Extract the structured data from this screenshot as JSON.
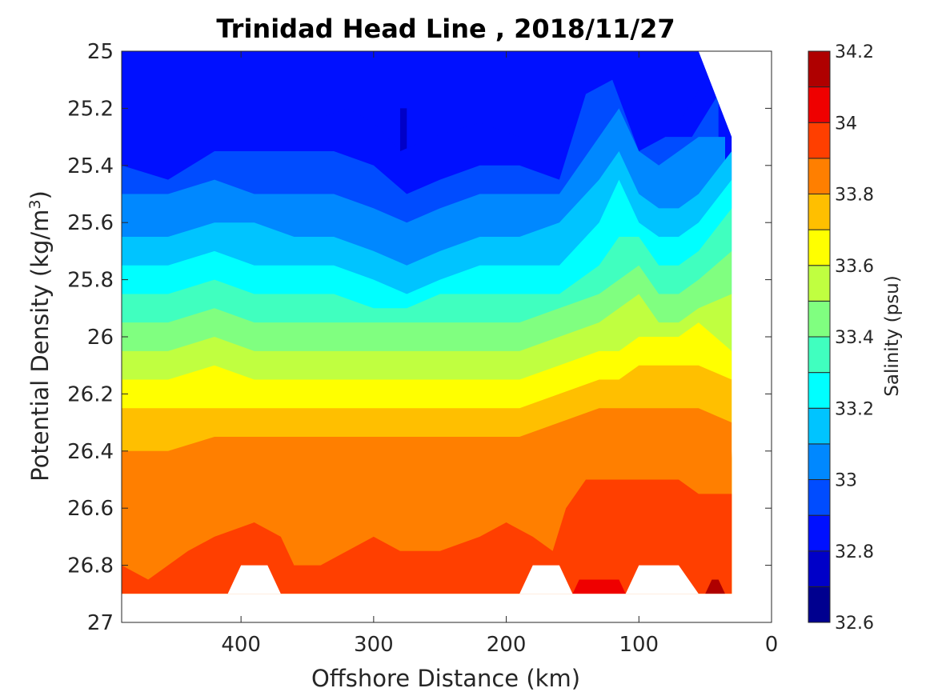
{
  "chart_data": {
    "type": "contour",
    "title": "Trinidad Head Line , 2018/11/27",
    "xlabel": "Offshore Distance (km)",
    "ylabel_main": "Potential Density (kg/m",
    "ylabel_sup": "3",
    "ylabel_close": ")",
    "xlim": [
      490,
      0
    ],
    "x_reversed": true,
    "ylim": [
      25,
      27
    ],
    "y_reversed": true,
    "xticks": [
      400,
      300,
      200,
      100,
      0
    ],
    "xtick_labels": [
      "400",
      "300",
      "200",
      "100",
      "0"
    ],
    "yticks": [
      25,
      25.2,
      25.4,
      25.6,
      25.8,
      26,
      26.2,
      26.4,
      26.6,
      26.8,
      27
    ],
    "ytick_labels": [
      "25",
      "25.2",
      "25.4",
      "25.6",
      "25.8",
      "26",
      "26.2",
      "26.4",
      "26.6",
      "26.8",
      "27"
    ],
    "colorbar": {
      "label": "Salinity (psu)",
      "range": [
        32.6,
        34.2
      ],
      "ticks": [
        32.6,
        32.8,
        33,
        33.2,
        33.4,
        33.6,
        33.8,
        34,
        34.2
      ],
      "tick_labels": [
        "32.6",
        "32.8",
        "33",
        "33.2",
        "33.4",
        "33.6",
        "33.8",
        "34",
        "34.2"
      ],
      "levels": [
        32.6,
        32.7,
        32.8,
        32.9,
        33.0,
        33.1,
        33.2,
        33.3,
        33.4,
        33.5,
        33.6,
        33.7,
        33.8,
        33.9,
        34.0,
        34.1,
        34.2
      ],
      "colors": [
        "#00008f",
        "#0000c8",
        "#0010ff",
        "#004cff",
        "#0088ff",
        "#00c4ff",
        "#00ffff",
        "#40ffbf",
        "#80ff80",
        "#c0ff40",
        "#ffff00",
        "#ffbf00",
        "#ff7f00",
        "#ff3f00",
        "#ef0000",
        "#af0000"
      ]
    },
    "contour_boundaries": [
      {
        "level": 32.7,
        "points": [
          [
            280,
            25.0
          ],
          [
            280,
            25.2
          ],
          [
            275,
            25.2
          ]
        ]
      },
      {
        "level": 32.8,
        "points": [
          [
            490,
            25.0
          ],
          [
            490,
            25.25
          ],
          [
            455,
            25.25
          ],
          [
            420,
            25.25
          ],
          [
            380,
            25.25
          ],
          [
            350,
            25.25
          ],
          [
            320,
            25.2
          ],
          [
            300,
            25.25
          ],
          [
            280,
            25.35
          ],
          [
            255,
            25.3
          ],
          [
            220,
            25.25
          ],
          [
            190,
            25.3
          ],
          [
            160,
            25.3
          ],
          [
            140,
            25.2
          ],
          [
            125,
            25.25
          ],
          [
            95,
            25.25
          ],
          [
            70,
            25.25
          ],
          [
            50,
            25.1
          ],
          [
            50,
            25.0
          ]
        ]
      },
      {
        "level": 32.9,
        "points": [
          [
            490,
            25.25
          ],
          [
            490,
            25.4
          ],
          [
            455,
            25.45
          ],
          [
            420,
            25.35
          ],
          [
            390,
            25.35
          ],
          [
            360,
            25.35
          ],
          [
            330,
            25.35
          ],
          [
            300,
            25.4
          ],
          [
            275,
            25.5
          ],
          [
            250,
            25.45
          ],
          [
            220,
            25.4
          ],
          [
            190,
            25.4
          ],
          [
            160,
            25.45
          ],
          [
            140,
            25.15
          ],
          [
            120,
            25.1
          ],
          [
            100,
            25.35
          ],
          [
            80,
            25.3
          ],
          [
            60,
            25.3
          ],
          [
            40,
            25.15
          ]
        ]
      },
      {
        "level": 33.0,
        "points": [
          [
            490,
            25.4
          ],
          [
            490,
            25.5
          ],
          [
            455,
            25.5
          ],
          [
            420,
            25.45
          ],
          [
            390,
            25.5
          ],
          [
            360,
            25.5
          ],
          [
            330,
            25.5
          ],
          [
            300,
            25.55
          ],
          [
            275,
            25.6
          ],
          [
            250,
            25.55
          ],
          [
            220,
            25.5
          ],
          [
            190,
            25.5
          ],
          [
            160,
            25.5
          ],
          [
            130,
            25.3
          ],
          [
            115,
            25.2
          ],
          [
            100,
            25.35
          ],
          [
            85,
            25.4
          ],
          [
            70,
            25.35
          ],
          [
            55,
            25.3
          ],
          [
            35,
            25.3
          ]
        ]
      },
      {
        "level": 33.1,
        "points": [
          [
            490,
            25.5
          ],
          [
            490,
            25.65
          ],
          [
            455,
            25.65
          ],
          [
            420,
            25.6
          ],
          [
            390,
            25.6
          ],
          [
            360,
            25.65
          ],
          [
            330,
            25.65
          ],
          [
            300,
            25.7
          ],
          [
            275,
            25.75
          ],
          [
            250,
            25.7
          ],
          [
            220,
            25.65
          ],
          [
            190,
            25.65
          ],
          [
            160,
            25.6
          ],
          [
            130,
            25.45
          ],
          [
            115,
            25.35
          ],
          [
            100,
            25.5
          ],
          [
            85,
            25.55
          ],
          [
            70,
            25.55
          ],
          [
            55,
            25.5
          ],
          [
            30,
            25.35
          ]
        ]
      },
      {
        "level": 33.2,
        "points": [
          [
            490,
            25.65
          ],
          [
            490,
            25.75
          ],
          [
            455,
            25.75
          ],
          [
            420,
            25.7
          ],
          [
            390,
            25.75
          ],
          [
            360,
            25.75
          ],
          [
            330,
            25.75
          ],
          [
            300,
            25.8
          ],
          [
            275,
            25.85
          ],
          [
            250,
            25.8
          ],
          [
            220,
            25.75
          ],
          [
            190,
            25.75
          ],
          [
            160,
            25.75
          ],
          [
            130,
            25.6
          ],
          [
            115,
            25.45
          ],
          [
            100,
            25.6
          ],
          [
            85,
            25.65
          ],
          [
            70,
            25.65
          ],
          [
            55,
            25.6
          ],
          [
            30,
            25.45
          ]
        ]
      },
      {
        "level": 33.3,
        "points": [
          [
            490,
            25.75
          ],
          [
            490,
            25.85
          ],
          [
            455,
            25.85
          ],
          [
            420,
            25.8
          ],
          [
            390,
            25.85
          ],
          [
            360,
            25.85
          ],
          [
            330,
            25.85
          ],
          [
            300,
            25.9
          ],
          [
            275,
            25.9
          ],
          [
            250,
            25.85
          ],
          [
            220,
            25.85
          ],
          [
            190,
            25.85
          ],
          [
            160,
            25.85
          ],
          [
            130,
            25.75
          ],
          [
            115,
            25.65
          ],
          [
            100,
            25.65
          ],
          [
            85,
            25.75
          ],
          [
            70,
            25.75
          ],
          [
            55,
            25.7
          ],
          [
            30,
            25.55
          ]
        ]
      },
      {
        "level": 33.4,
        "points": [
          [
            490,
            25.85
          ],
          [
            490,
            25.95
          ],
          [
            455,
            25.95
          ],
          [
            420,
            25.9
          ],
          [
            390,
            25.95
          ],
          [
            360,
            25.95
          ],
          [
            330,
            25.95
          ],
          [
            300,
            25.95
          ],
          [
            275,
            25.95
          ],
          [
            250,
            25.95
          ],
          [
            220,
            25.95
          ],
          [
            190,
            25.95
          ],
          [
            160,
            25.9
          ],
          [
            130,
            25.85
          ],
          [
            115,
            25.8
          ],
          [
            100,
            25.75
          ],
          [
            85,
            25.85
          ],
          [
            70,
            25.85
          ],
          [
            55,
            25.8
          ],
          [
            30,
            25.7
          ]
        ]
      },
      {
        "level": 33.5,
        "points": [
          [
            490,
            25.95
          ],
          [
            490,
            26.05
          ],
          [
            455,
            26.05
          ],
          [
            420,
            26.0
          ],
          [
            390,
            26.05
          ],
          [
            360,
            26.05
          ],
          [
            330,
            26.05
          ],
          [
            300,
            26.05
          ],
          [
            275,
            26.05
          ],
          [
            250,
            26.05
          ],
          [
            220,
            26.05
          ],
          [
            190,
            26.05
          ],
          [
            160,
            26.0
          ],
          [
            130,
            25.95
          ],
          [
            115,
            25.9
          ],
          [
            100,
            25.85
          ],
          [
            85,
            25.95
          ],
          [
            70,
            25.95
          ],
          [
            55,
            25.9
          ],
          [
            30,
            25.85
          ]
        ]
      },
      {
        "level": 33.6,
        "points": [
          [
            490,
            26.05
          ],
          [
            490,
            26.15
          ],
          [
            455,
            26.15
          ],
          [
            420,
            26.1
          ],
          [
            390,
            26.15
          ],
          [
            360,
            26.15
          ],
          [
            330,
            26.15
          ],
          [
            300,
            26.15
          ],
          [
            275,
            26.15
          ],
          [
            250,
            26.15
          ],
          [
            220,
            26.15
          ],
          [
            190,
            26.15
          ],
          [
            160,
            26.1
          ],
          [
            130,
            26.05
          ],
          [
            115,
            26.05
          ],
          [
            100,
            26.0
          ],
          [
            85,
            26.0
          ],
          [
            70,
            26.0
          ],
          [
            55,
            25.95
          ],
          [
            30,
            26.05
          ]
        ]
      },
      {
        "level": 33.7,
        "points": [
          [
            490,
            26.15
          ],
          [
            490,
            26.25
          ],
          [
            455,
            26.25
          ],
          [
            420,
            26.25
          ],
          [
            390,
            26.25
          ],
          [
            360,
            26.25
          ],
          [
            330,
            26.25
          ],
          [
            300,
            26.25
          ],
          [
            275,
            26.25
          ],
          [
            250,
            26.25
          ],
          [
            220,
            26.25
          ],
          [
            190,
            26.25
          ],
          [
            160,
            26.2
          ],
          [
            130,
            26.15
          ],
          [
            115,
            26.15
          ],
          [
            100,
            26.1
          ],
          [
            85,
            26.1
          ],
          [
            70,
            26.1
          ],
          [
            55,
            26.1
          ],
          [
            30,
            26.15
          ]
        ]
      },
      {
        "level": 33.8,
        "points": [
          [
            490,
            26.25
          ],
          [
            490,
            26.4
          ],
          [
            455,
            26.4
          ],
          [
            420,
            26.35
          ],
          [
            390,
            26.35
          ],
          [
            360,
            26.35
          ],
          [
            330,
            26.35
          ],
          [
            300,
            26.35
          ],
          [
            275,
            26.35
          ],
          [
            250,
            26.35
          ],
          [
            220,
            26.35
          ],
          [
            190,
            26.35
          ],
          [
            160,
            26.3
          ],
          [
            130,
            26.25
          ],
          [
            115,
            26.25
          ],
          [
            100,
            26.25
          ],
          [
            85,
            26.25
          ],
          [
            70,
            26.25
          ],
          [
            55,
            26.25
          ],
          [
            30,
            26.3
          ]
        ]
      },
      {
        "level": 33.9,
        "points": [
          [
            490,
            26.4
          ],
          [
            490,
            26.8
          ],
          [
            470,
            26.85
          ],
          [
            455,
            26.8
          ],
          [
            440,
            26.75
          ],
          [
            420,
            26.7
          ],
          [
            390,
            26.65
          ],
          [
            370,
            26.7
          ],
          [
            360,
            26.8
          ],
          [
            340,
            26.8
          ],
          [
            320,
            26.75
          ],
          [
            300,
            26.7
          ],
          [
            280,
            26.75
          ],
          [
            250,
            26.75
          ],
          [
            220,
            26.7
          ],
          [
            200,
            26.65
          ],
          [
            180,
            26.7
          ],
          [
            165,
            26.75
          ],
          [
            155,
            26.6
          ],
          [
            140,
            26.5
          ],
          [
            115,
            26.5
          ],
          [
            100,
            26.5
          ],
          [
            85,
            26.5
          ],
          [
            70,
            26.5
          ],
          [
            55,
            26.55
          ],
          [
            30,
            26.55
          ],
          [
            30,
            26.4
          ],
          [
            30,
            26.35
          ]
        ]
      },
      {
        "level": 34.0,
        "points": [
          [
            150,
            26.9
          ],
          [
            145,
            26.85
          ],
          [
            130,
            26.85
          ],
          [
            115,
            26.85
          ],
          [
            110,
            26.9
          ]
        ]
      },
      {
        "level": 34.1,
        "points": [
          [
            50,
            26.9
          ],
          [
            45,
            26.85
          ],
          [
            40,
            26.85
          ],
          [
            35,
            26.9
          ]
        ]
      }
    ]
  }
}
